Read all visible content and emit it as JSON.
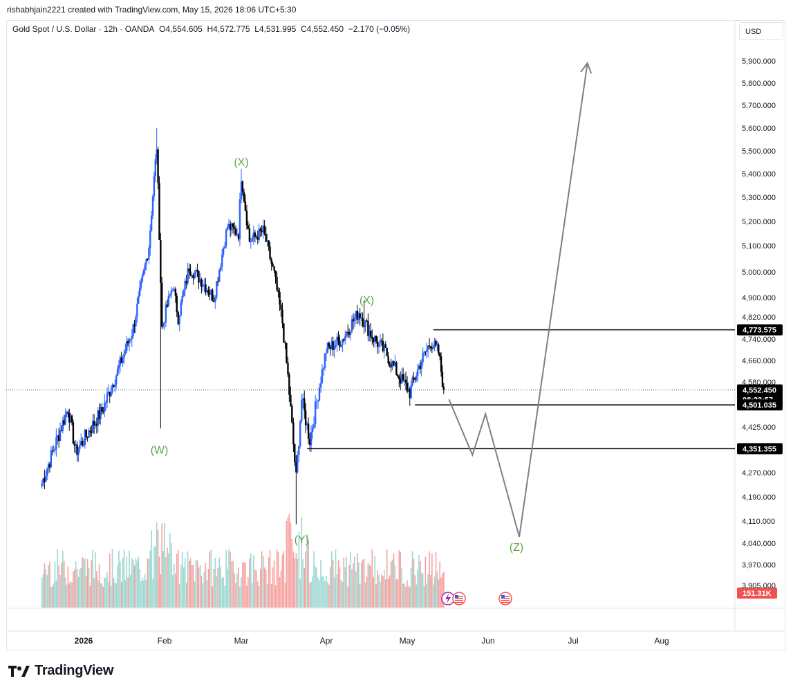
{
  "caption": "rishabhjain2221 created with TradingView.com, May 15, 2026 18:06 UTC+5:30",
  "header": {
    "symbol": "Gold Spot / U.S. Dollar · 12h · OANDA",
    "open_label": "O",
    "open": "4,554.605",
    "high_label": "H",
    "high": "4,572.775",
    "low_label": "L",
    "low": "4,531.995",
    "close_label": "C",
    "close": "4,552.450",
    "change": "−2.170 (−0.05%)"
  },
  "currency_button": "USD",
  "brand": "TradingView",
  "colors": {
    "up": "#2962ff",
    "down": "#000000",
    "vol_up": "#4db6ac",
    "vol_down": "#ef5350",
    "wave_label": "#5aa54a",
    "projection": "#7f7f7f"
  },
  "chart_data": {
    "type": "candlestick",
    "y_ticks": [
      "5,900.000",
      "5,800.000",
      "5,700.000",
      "5,600.000",
      "5,500.000",
      "5,400.000",
      "5,300.000",
      "5,200.000",
      "5,100.000",
      "5,000.000",
      "4,900.000",
      "4,820.000",
      "4,740.000",
      "4,660.000",
      "4,580.000",
      "4,425.000",
      "4,270.000",
      "4,190.000",
      "4,110.000",
      "4,040.000",
      "3,970.000",
      "3,905.000"
    ],
    "y_tick_values": [
      5900,
      5800,
      5700,
      5600,
      5500,
      5400,
      5300,
      5200,
      5100,
      5000,
      4900,
      4820,
      4740,
      4660,
      4580,
      4425,
      4270,
      4190,
      4110,
      4040,
      3970,
      3905
    ],
    "x_ticks": [
      "2026",
      "Feb",
      "Mar",
      "Apr",
      "May",
      "Jun",
      "Jul",
      "Aug"
    ],
    "price_labels": [
      {
        "text": "4,773.575",
        "value": 4773.575
      },
      {
        "text": "4,552.450",
        "value": 4552.45
      },
      {
        "text": "08:23:57",
        "value": 4552.45
      },
      {
        "text": "4,501.035",
        "value": 4501.035
      },
      {
        "text": "4,351.355",
        "value": 4351.355
      }
    ],
    "volume_label": "151.31K",
    "wave_labels": [
      {
        "text": "(W)",
        "date": "2026-01-30",
        "value": 4335
      },
      {
        "text": "(X)",
        "date": "2026-03-01",
        "value": 5435
      },
      {
        "text": "(Y)",
        "date": "2026-03-23",
        "value": 4040
      },
      {
        "text": "(X)",
        "date": "2026-04-16",
        "value": 4875
      },
      {
        "text": "(Z)",
        "date": "2026-06-11",
        "value": 4015
      }
    ],
    "levels": [
      {
        "value": 4773.575,
        "from": "2026-05-11"
      },
      {
        "value": 4501.035,
        "from": "2026-05-04"
      },
      {
        "value": 4351.355,
        "from": "2026-03-25"
      }
    ],
    "projection_path": [
      {
        "date": "2026-05-17",
        "value": 4520
      },
      {
        "date": "2026-05-26",
        "value": 4330
      },
      {
        "date": "2026-05-31",
        "value": 4470
      },
      {
        "date": "2026-06-12",
        "value": 4060
      },
      {
        "date": "2026-07-06",
        "value": 5890
      }
    ],
    "anchors": [
      {
        "date": "2025-12-16",
        "value": 4235
      },
      {
        "date": "2025-12-26",
        "value": 4490
      },
      {
        "date": "2025-12-29",
        "value": 4340
      },
      {
        "date": "2026-01-08",
        "value": 4480
      },
      {
        "date": "2026-01-14",
        "value": 4620
      },
      {
        "date": "2026-01-20",
        "value": 4780
      },
      {
        "date": "2026-01-26",
        "value": 5100
      },
      {
        "date": "2026-01-29",
        "value": 5520
      },
      {
        "date": "2026-01-31",
        "value": 4780
      },
      {
        "date": "2026-02-04",
        "value": 4950
      },
      {
        "date": "2026-02-06",
        "value": 4820
      },
      {
        "date": "2026-02-10",
        "value": 5020
      },
      {
        "date": "2026-02-15",
        "value": 4960
      },
      {
        "date": "2026-02-19",
        "value": 4900
      },
      {
        "date": "2026-02-24",
        "value": 5180
      },
      {
        "date": "2026-02-28",
        "value": 5150
      },
      {
        "date": "2026-03-01",
        "value": 5390
      },
      {
        "date": "2026-03-04",
        "value": 5120
      },
      {
        "date": "2026-03-09",
        "value": 5160
      },
      {
        "date": "2026-03-13",
        "value": 4990
      },
      {
        "date": "2026-03-16",
        "value": 4800
      },
      {
        "date": "2026-03-18",
        "value": 4600
      },
      {
        "date": "2026-03-21",
        "value": 4250
      },
      {
        "date": "2026-03-23",
        "value": 4520
      },
      {
        "date": "2026-03-26",
        "value": 4380
      },
      {
        "date": "2026-04-01",
        "value": 4700
      },
      {
        "date": "2026-04-07",
        "value": 4740
      },
      {
        "date": "2026-04-13",
        "value": 4840
      },
      {
        "date": "2026-04-18",
        "value": 4750
      },
      {
        "date": "2026-04-23",
        "value": 4690
      },
      {
        "date": "2026-04-28",
        "value": 4600
      },
      {
        "date": "2026-05-02",
        "value": 4545
      },
      {
        "date": "2026-05-06",
        "value": 4650
      },
      {
        "date": "2026-05-10",
        "value": 4730
      },
      {
        "date": "2026-05-13",
        "value": 4690
      },
      {
        "date": "2026-05-15",
        "value": 4552.45
      }
    ]
  }
}
